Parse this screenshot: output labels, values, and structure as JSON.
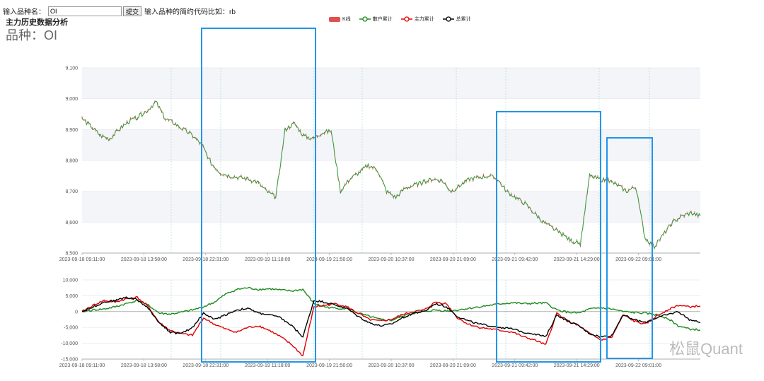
{
  "form": {
    "label": "输入品种名：",
    "input_value": "OI",
    "submit_label": "提交",
    "hint": "输入品种的简约代码比如：rb"
  },
  "subtitle": "主力历史数据分析",
  "title": "品种：OI",
  "legend": [
    {
      "name": "K线",
      "color": "#e05050"
    },
    {
      "name": "散户累计",
      "color": "#1a8a1a"
    },
    {
      "name": "主力累计",
      "color": "#e00000"
    },
    {
      "name": "总累计",
      "color": "#000000"
    }
  ],
  "watermark": "松鼠Quant",
  "chart_data": [
    {
      "type": "line",
      "title": "",
      "y_ticks": [
        "9,100",
        "9,000",
        "8,900",
        "8,800",
        "8,700",
        "8,600",
        "8,500"
      ],
      "ylim": [
        8500,
        9100
      ],
      "x_ticks": [
        "2023-09-18 09:11:00",
        "2023-09-18 13:58:00",
        "2023-09-18 22:31:00",
        "2023-09-19 11:18:00",
        "2023-09-19 21:50:00",
        "2023-09-20 10:37:00",
        "2023-09-20 21:09:00",
        "2023-09-21 09:42:00",
        "2023-09-21 14:29:00",
        "2023-09-22 09:01:00"
      ],
      "series": [
        {
          "name": "K线",
          "values": [
            8935,
            8910,
            8880,
            8870,
            8900,
            8925,
            8940,
            8960,
            8990,
            8935,
            8920,
            8900,
            8880,
            8850,
            8790,
            8760,
            8750,
            8745,
            8740,
            8730,
            8700,
            8680,
            8900,
            8920,
            8880,
            8870,
            8890,
            8895,
            8700,
            8740,
            8760,
            8785,
            8770,
            8700,
            8680,
            8710,
            8720,
            8730,
            8740,
            8735,
            8700,
            8720,
            8740,
            8745,
            8750,
            8740,
            8700,
            8680,
            8660,
            8630,
            8600,
            8580,
            8560,
            8540,
            8530,
            8750,
            8740,
            8735,
            8720,
            8700,
            8715,
            8550,
            8520,
            8560,
            8600,
            8620,
            8630,
            8620
          ]
        }
      ]
    },
    {
      "type": "line",
      "title": "",
      "y_ticks": [
        "10,000",
        "5,000",
        "0",
        "-5,000",
        "-10,000",
        "-15,000"
      ],
      "ylim": [
        -15000,
        10000
      ],
      "x_ticks": [
        "2023-09-18 09:11:00",
        "2023-09-18 13:58:00",
        "2023-09-18 22:31:00",
        "2023-09-19 11:18:00",
        "2023-09-19 21:50:00",
        "2023-09-20 10:37:00",
        "2023-09-20 21:09:00",
        "2023-09-21 09:42:00",
        "2023-09-21 14:29:00",
        "2023-09-22 09:01:00"
      ],
      "series": [
        {
          "name": "散户累计",
          "values": [
            0,
            500,
            800,
            1500,
            2500,
            3500,
            2000,
            -500,
            -800,
            -200,
            500,
            1500,
            3000,
            5500,
            7000,
            7500,
            7000,
            7200,
            6800,
            6500,
            7000,
            2500,
            1500,
            1000,
            1000,
            -500,
            -1500,
            -2500,
            -2800,
            -1500,
            -500,
            0,
            500,
            200,
            500,
            1000,
            1500,
            2000,
            2500,
            2800,
            2500,
            2600,
            2700,
            500,
            -200,
            -500,
            800,
            1200,
            800,
            0,
            -300,
            -500,
            -1000,
            -2000,
            -4500,
            -5500,
            -5800
          ]
        },
        {
          "name": "主力累计",
          "values": [
            0,
            2000,
            3500,
            3000,
            4000,
            4500,
            1500,
            -3500,
            -6000,
            -7000,
            -7500,
            -2000,
            -4000,
            -5500,
            -6500,
            -5000,
            -4500,
            -6000,
            -8000,
            -10500,
            -14000,
            1500,
            2000,
            2500,
            1500,
            -500,
            -2500,
            -3000,
            -2500,
            -1000,
            0,
            500,
            3000,
            2500,
            -2000,
            -4000,
            -5000,
            -5500,
            -6000,
            -6500,
            -8000,
            -9000,
            -10500,
            -500,
            -3000,
            -4500,
            -7000,
            -9000,
            -8000,
            -1000,
            -3000,
            -4000,
            -1500,
            500,
            2000,
            1500,
            1800
          ]
        },
        {
          "name": "总累计",
          "values": [
            0,
            1500,
            3000,
            3500,
            4500,
            3800,
            1000,
            -3500,
            -6500,
            -7000,
            -5000,
            -500,
            -2500,
            -1000,
            500,
            1000,
            -500,
            -1000,
            -2000,
            -4500,
            -8000,
            3500,
            3000,
            2000,
            1000,
            -1500,
            -3500,
            -4500,
            -4000,
            -2000,
            -500,
            0,
            2500,
            1500,
            -1500,
            -3000,
            -4000,
            -4500,
            -5000,
            -5500,
            -6500,
            -7000,
            -8000,
            -1000,
            -3000,
            -4500,
            -7000,
            -8000,
            -7500,
            -1000,
            -2500,
            -3500,
            -2000,
            -1000,
            0,
            -2500,
            -3500
          ]
        }
      ]
    }
  ]
}
